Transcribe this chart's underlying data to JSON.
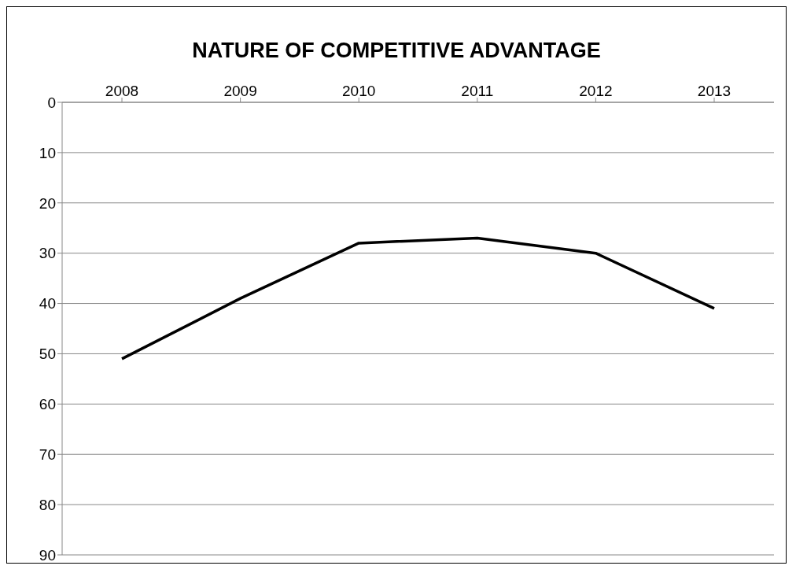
{
  "chart_data": {
    "type": "line",
    "title": "NATURE OF COMPETITIVE ADVANTAGE",
    "categories": [
      "2008",
      "2009",
      "2010",
      "2011",
      "2012",
      "2013"
    ],
    "series": [
      {
        "color": "#000000",
        "values": [
          51,
          39,
          28,
          27,
          30,
          41
        ]
      }
    ],
    "ylim": [
      90,
      0
    ],
    "yticks": [
      0,
      10,
      20,
      30,
      40,
      50,
      60,
      70,
      80,
      90
    ],
    "grid": "y",
    "marker": "none",
    "line_style": "solid"
  }
}
